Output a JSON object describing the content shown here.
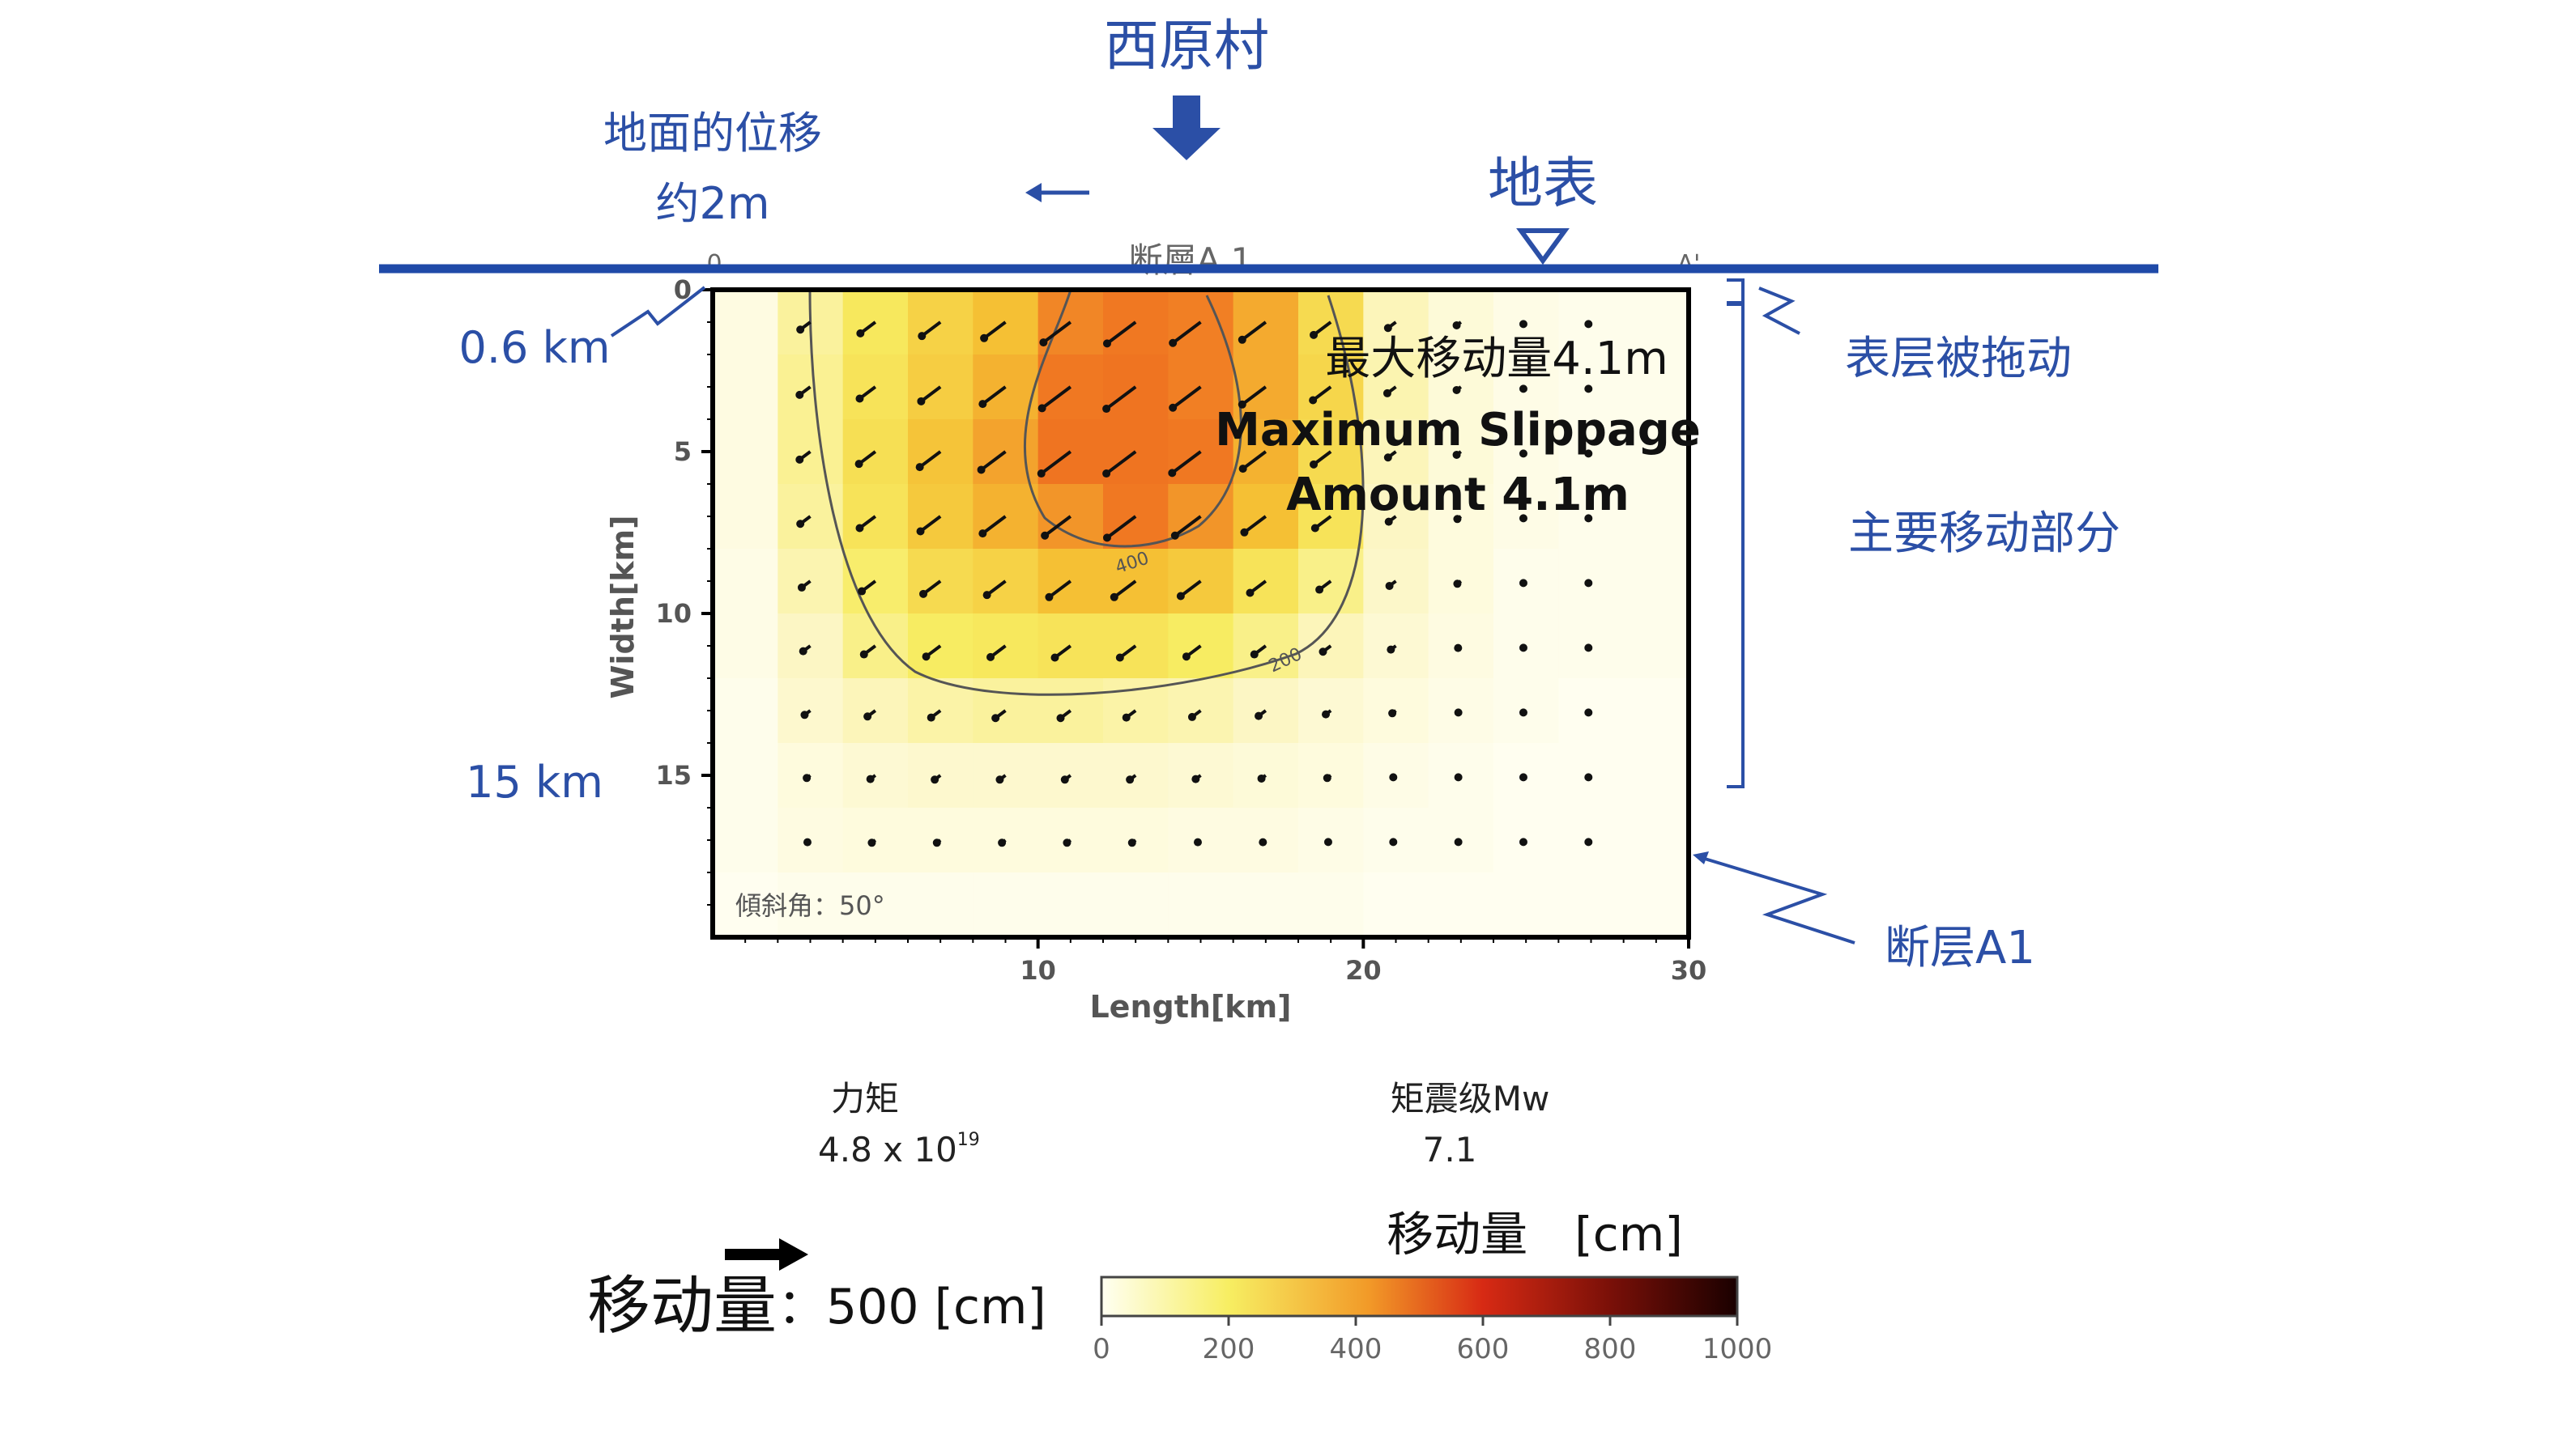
{
  "village_label": "西原村",
  "ground_displacement": {
    "line1": "地面的位移",
    "line2": "约2m"
  },
  "surface_label": "地表",
  "fault_top_label": "断層A 1",
  "left_depth_marks": {
    "top": "0.6 km",
    "bottom": "15 km"
  },
  "right_annotations": {
    "surface_drag": "表层被拖动",
    "main_motion": "主要移动部分",
    "fault_name": "断层A1"
  },
  "plot_corner_labels": {
    "left": "0",
    "right": "A'"
  },
  "max_slip": {
    "cn": "最大移动量4.1m",
    "en_line1": "Maximum Slippage",
    "en_line2": "Amount 4.1m"
  },
  "dip_angle_label": "傾斜角：50°",
  "contour_labels": [
    "400",
    "200"
  ],
  "moment": {
    "label": "力矩",
    "mantissa": "4.8 x 10",
    "exponent": "19"
  },
  "magnitude": {
    "label": "矩震级Mw",
    "value": "7.1"
  },
  "arrow_scale": {
    "label": "移动量",
    "value": "：500 [cm]"
  },
  "colorbar": {
    "title": "移动量　[cm]",
    "ticks": [
      "0",
      "200",
      "400",
      "600",
      "800",
      "1000"
    ],
    "range": [
      0,
      1000
    ]
  },
  "colors": {
    "annotation_blue": "#2b4fa6",
    "surface_line": "#1f4aa8",
    "slip_low": "#fffbe4",
    "slip_high": "#e8411e"
  },
  "chart_data": {
    "type": "heatmap",
    "title": "",
    "xlabel": "Length[km]",
    "ylabel": "Width[km]",
    "xlim": [
      0,
      30
    ],
    "ylim": [
      0,
      20
    ],
    "x_ticks": [
      "10",
      "20",
      "30"
    ],
    "y_ticks": [
      "0",
      "5",
      "10",
      "15"
    ],
    "cell_size_km": [
      2,
      2
    ],
    "x_centers": [
      1,
      3,
      5,
      7,
      9,
      11,
      13,
      15,
      17,
      19,
      21,
      23,
      25,
      27,
      29
    ],
    "y_centers": [
      1,
      3,
      5,
      7,
      9,
      11,
      13,
      15,
      17,
      19
    ],
    "values_cm": [
      [
        40,
        140,
        210,
        260,
        300,
        380,
        400,
        390,
        330,
        240,
        110,
        60,
        30,
        20,
        20
      ],
      [
        40,
        150,
        220,
        270,
        320,
        400,
        410,
        390,
        330,
        250,
        120,
        60,
        30,
        20,
        20
      ],
      [
        40,
        150,
        230,
        290,
        340,
        410,
        410,
        400,
        320,
        240,
        110,
        60,
        30,
        20,
        20
      ],
      [
        40,
        140,
        220,
        280,
        320,
        360,
        400,
        360,
        300,
        220,
        100,
        50,
        30,
        20,
        20
      ],
      [
        30,
        120,
        190,
        240,
        260,
        300,
        300,
        280,
        220,
        160,
        90,
        50,
        20,
        20,
        20
      ],
      [
        30,
        100,
        160,
        200,
        210,
        220,
        220,
        200,
        160,
        110,
        70,
        40,
        20,
        20,
        20
      ],
      [
        20,
        80,
        110,
        130,
        140,
        140,
        130,
        120,
        100,
        70,
        50,
        30,
        20,
        10,
        10
      ],
      [
        20,
        50,
        70,
        80,
        80,
        80,
        80,
        70,
        60,
        50,
        30,
        20,
        10,
        10,
        10
      ],
      [
        20,
        40,
        50,
        50,
        50,
        50,
        50,
        40,
        40,
        30,
        20,
        20,
        10,
        10,
        10
      ],
      [
        10,
        20,
        20,
        20,
        20,
        20,
        20,
        20,
        20,
        20,
        10,
        10,
        10,
        10,
        10
      ]
    ]
  }
}
